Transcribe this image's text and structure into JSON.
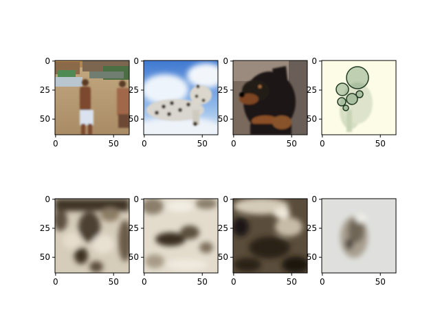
{
  "figure": {
    "background": "#ffffff",
    "rows": 2,
    "cols": 4
  },
  "chart_data": {
    "type": "image-grid",
    "title": "",
    "image_shape": [
      64,
      64
    ],
    "xlim": [
      -0.5,
      63.5
    ],
    "ylim": [
      63.5,
      -0.5
    ],
    "x_ticks": [
      0,
      50
    ],
    "y_ticks": [
      0,
      25,
      50
    ],
    "x_tick_labels": [
      "0",
      "50"
    ],
    "y_tick_labels": [
      "0",
      "25",
      "50"
    ],
    "panels": [
      {
        "row": 0,
        "col": 0,
        "content": "beach scene with people on sand",
        "colormap": "rgb"
      },
      {
        "row": 0,
        "col": 1,
        "content": "plush snow leopard toy against blue sky with clouds",
        "colormap": "rgb"
      },
      {
        "row": 0,
        "col": 2,
        "content": "black and tan dog portrait",
        "colormap": "rgb"
      },
      {
        "row": 0,
        "col": 3,
        "content": "green translucent overlapping circles on cream background",
        "colormap": "rgb"
      },
      {
        "row": 1,
        "col": 0,
        "content": "blurry dark saliency blob map",
        "colormap": "sepia-gray"
      },
      {
        "row": 1,
        "col": 1,
        "content": "blurry light saliency map with dark center blob",
        "colormap": "sepia-gray"
      },
      {
        "row": 1,
        "col": 2,
        "content": "dark blurry saliency map",
        "colormap": "sepia-gray"
      },
      {
        "row": 1,
        "col": 3,
        "content": "light gray map with faint centered dark blob",
        "colormap": "sepia-gray"
      }
    ]
  }
}
